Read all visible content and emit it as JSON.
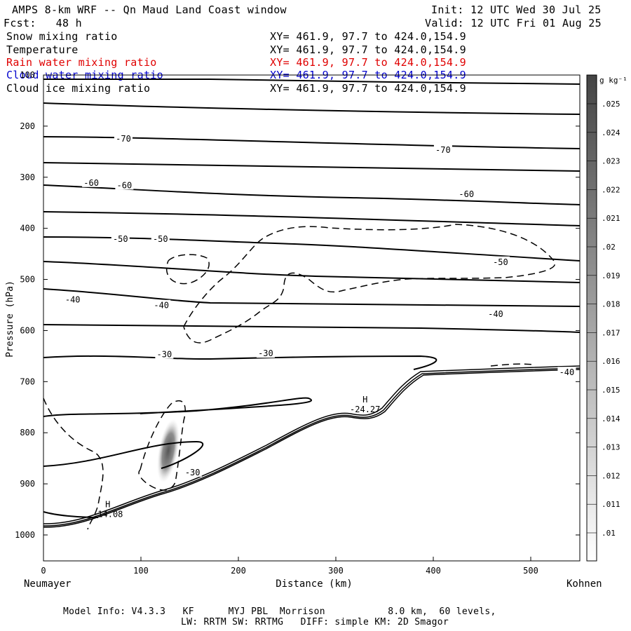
{
  "header": {
    "title": "AMPS 8-km WRF -- Qn Maud Land Coast window",
    "init": "Init: 12 UTC Wed 30 Jul 25",
    "fcst": "Fcst:   48 h",
    "valid": "Valid: 12 UTC Fri 01 Aug 25"
  },
  "fields": [
    {
      "name": "Snow mixing ratio",
      "xy": "XY= 461.9, 97.7 to 424.0,154.9"
    },
    {
      "name": "Temperature",
      "xy": "XY= 461.9, 97.7 to 424.0,154.9"
    },
    {
      "name": "Rain water mixing ratio",
      "xy": "XY= 461.9, 97.7 to 424.0,154.9"
    },
    {
      "name": "Cloud water mixing ratio",
      "xy": "XY= 461.9, 97.7 to 424.0,154.9"
    },
    {
      "name": "Cloud ice mixing ratio",
      "xy": "XY= 461.9, 97.7 to 424.0,154.9"
    }
  ],
  "colors": {
    "rain": "#e00000",
    "cloud_water": "#0000cc",
    "line": "#000000"
  },
  "endpoints": {
    "left": "Neumayer",
    "right": "Kohnen"
  },
  "footer": {
    "line1": "Model Info: V4.3.3   KF      MYJ PBL  Morrison           8.0 km,  60 levels,",
    "line2": "LW: RRTM SW: RRTMG   DIFF: simple KM: 2D Smagor"
  },
  "chart_data": {
    "type": "cross-section",
    "xlabel": "Distance (km)",
    "ylabel": "Pressure (hPa)",
    "xlim": [
      0,
      550
    ],
    "ylim": [
      1050,
      100
    ],
    "x_ticks": [
      0,
      100,
      200,
      300,
      400,
      500
    ],
    "y_ticks": [
      100,
      200,
      300,
      400,
      500,
      600,
      700,
      800,
      900,
      1000
    ],
    "colorbar": {
      "unit": "g kg⁻¹",
      "levels": [
        ".01",
        ".011",
        ".012",
        ".013",
        ".014",
        ".015",
        ".016",
        ".017",
        ".018",
        ".019",
        ".02",
        ".021",
        ".022",
        ".023",
        ".024",
        ".025"
      ]
    },
    "temperature_contour_labels": [
      {
        "value": "-70",
        "x": 82,
        "p": 225
      },
      {
        "value": "-70",
        "x": 410,
        "p": 247
      },
      {
        "value": "-60",
        "x": 49,
        "p": 311
      },
      {
        "value": "-60",
        "x": 83,
        "p": 316
      },
      {
        "value": "-60",
        "x": 434,
        "p": 333
      },
      {
        "value": "-50",
        "x": 79,
        "p": 421
      },
      {
        "value": "-50",
        "x": 120,
        "p": 421
      },
      {
        "value": "-50",
        "x": 469,
        "p": 466
      },
      {
        "value": "-40",
        "x": 30,
        "p": 540
      },
      {
        "value": "-40",
        "x": 121,
        "p": 551
      },
      {
        "value": "-40",
        "x": 464,
        "p": 568
      },
      {
        "value": "-30",
        "x": 124,
        "p": 647
      },
      {
        "value": "-30",
        "x": 228,
        "p": 645
      },
      {
        "value": "-30",
        "x": 153,
        "p": 878
      },
      {
        "value": "-40",
        "x": 537,
        "p": 682
      }
    ],
    "extrema": [
      {
        "type": "H",
        "value": "-24.27",
        "x": 330,
        "p": 757
      },
      {
        "type": "H",
        "value": "-14.08",
        "x": 66,
        "p": 962
      }
    ],
    "snow_max_region": {
      "x": 127,
      "p": 830,
      "approx_value": 0.025
    }
  }
}
